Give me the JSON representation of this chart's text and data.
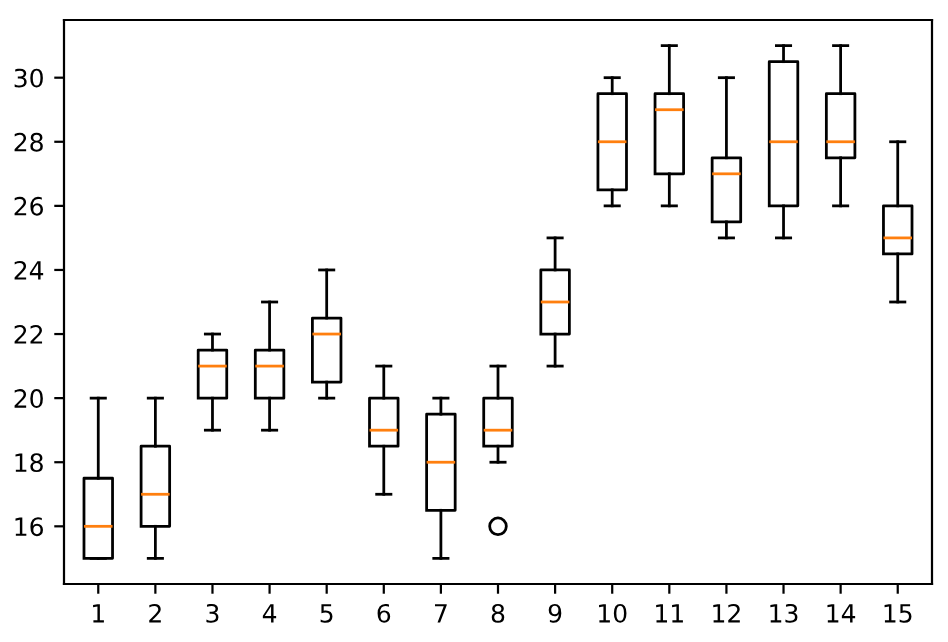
{
  "chart_data": {
    "type": "box",
    "categories": [
      "1",
      "2",
      "3",
      "4",
      "5",
      "6",
      "7",
      "8",
      "9",
      "10",
      "11",
      "12",
      "13",
      "14",
      "15"
    ],
    "boxes": [
      {
        "low": 15,
        "q1": 15,
        "median": 16,
        "q3": 17.5,
        "high": 20
      },
      {
        "low": 15,
        "q1": 16,
        "median": 17,
        "q3": 18.5,
        "high": 20
      },
      {
        "low": 19,
        "q1": 20,
        "median": 21,
        "q3": 21.5,
        "high": 22
      },
      {
        "low": 19,
        "q1": 20,
        "median": 21,
        "q3": 21.5,
        "high": 23
      },
      {
        "low": 20,
        "q1": 20.5,
        "median": 22,
        "q3": 22.5,
        "high": 24
      },
      {
        "low": 17,
        "q1": 18.5,
        "median": 19,
        "q3": 20,
        "high": 21
      },
      {
        "low": 15,
        "q1": 16.5,
        "median": 18,
        "q3": 19.5,
        "high": 20
      },
      {
        "low": 18,
        "q1": 18.5,
        "median": 19,
        "q3": 20,
        "high": 21,
        "outliers": [
          16
        ]
      },
      {
        "low": 21,
        "q1": 22,
        "median": 23,
        "q3": 24,
        "high": 25
      },
      {
        "low": 26,
        "q1": 26.5,
        "median": 28,
        "q3": 29.5,
        "high": 30
      },
      {
        "low": 26,
        "q1": 27,
        "median": 29,
        "q3": 29.5,
        "high": 31
      },
      {
        "low": 25,
        "q1": 25.5,
        "median": 27,
        "q3": 27.5,
        "high": 30
      },
      {
        "low": 25,
        "q1": 26,
        "median": 28,
        "q3": 30.5,
        "high": 31
      },
      {
        "low": 26,
        "q1": 27.5,
        "median": 28,
        "q3": 29.5,
        "high": 31
      },
      {
        "low": 23,
        "q1": 24.5,
        "median": 25,
        "q3": 26,
        "high": 28
      }
    ],
    "ylim": [
      14.2,
      31.8
    ],
    "yticks": [
      16,
      18,
      20,
      22,
      24,
      26,
      28,
      30
    ],
    "grid": false
  }
}
